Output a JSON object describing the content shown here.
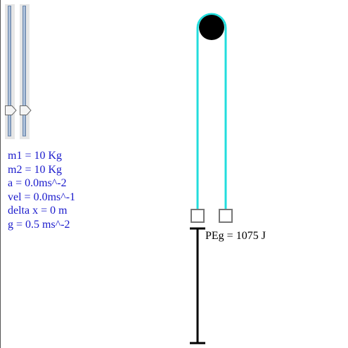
{
  "sliders": [
    {
      "id": "m1",
      "label": "m1",
      "value": 10,
      "min": 0,
      "max": 50
    },
    {
      "id": "m2",
      "label": "m2",
      "value": 10,
      "min": 0,
      "max": 50
    }
  ],
  "readout": {
    "m1": "m1 = 10 Kg",
    "m2": "m2 = 10 Kg",
    "a": "a = 0.0ms^-2",
    "vel": "vel = 0.0ms^-1",
    "delta_x": "delta x = 0 m",
    "g": "g = 0.5 ms^-2"
  },
  "peg_label": "PEg = 1075 J",
  "colors": {
    "rope": "#22dddd",
    "pulley": "#000000",
    "mass_border": "#777777",
    "readout_text": "#1a1acc",
    "ruler": "#000000"
  }
}
